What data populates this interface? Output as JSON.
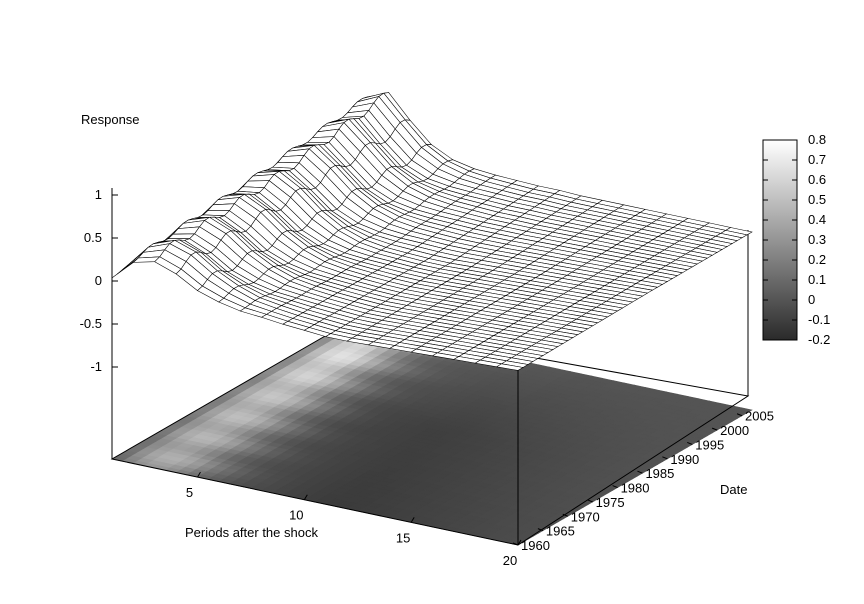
{
  "chart_data": {
    "type": "surface3d",
    "title": "",
    "zlabel": "Response",
    "xlabel": "Periods after the shock",
    "ylabel": "Date",
    "x_ticks": [
      "5",
      "10",
      "15",
      "20"
    ],
    "y_ticks": [
      "1960",
      "1965",
      "1970",
      "1975",
      "1980",
      "1985",
      "1990",
      "1995",
      "2000",
      "2005"
    ],
    "z_ticks": [
      "1",
      "0.5",
      "0",
      "-0.5",
      "-1"
    ],
    "xlim": [
      1,
      20
    ],
    "ylim": [
      1960,
      2007
    ],
    "zlim": [
      -1,
      1
    ],
    "colorbar": {
      "ticks": [
        "0.8",
        "0.7",
        "0.6",
        "0.5",
        "0.4",
        "0.3",
        "0.2",
        "0.1",
        "0",
        "-0.1",
        "-0.2"
      ],
      "range": [
        -0.2,
        0.8
      ],
      "low_color": "#2a2a2a",
      "high_color": "#ffffff"
    },
    "surface_profile": {
      "periods": [
        1,
        2,
        3,
        4,
        5,
        6,
        7,
        8,
        9,
        10,
        11,
        12,
        13,
        14,
        15,
        16,
        17,
        18,
        19,
        20
      ],
      "response_1960": [
        0.05,
        0.3,
        0.38,
        0.3,
        0.15,
        0.05,
        -0.02,
        -0.05,
        -0.08,
        -0.1,
        -0.12,
        -0.12,
        -0.11,
        -0.1,
        -0.09,
        -0.08,
        -0.07,
        -0.06,
        -0.05,
        -0.04
      ],
      "response_1985": [
        0.15,
        0.45,
        0.5,
        0.35,
        0.15,
        0.02,
        -0.05,
        -0.08,
        -0.09,
        -0.1,
        -0.1,
        -0.09,
        -0.08,
        -0.07,
        -0.06,
        -0.05,
        -0.04,
        -0.03,
        -0.02,
        -0.01
      ],
      "response_2007": [
        0.2,
        0.62,
        0.72,
        0.45,
        0.22,
        0.1,
        0.05,
        0.03,
        0.02,
        0.01,
        0.01,
        0.0,
        0.0,
        0.0,
        0.0,
        0.0,
        0.0,
        0.0,
        0.0,
        0.0
      ]
    }
  }
}
